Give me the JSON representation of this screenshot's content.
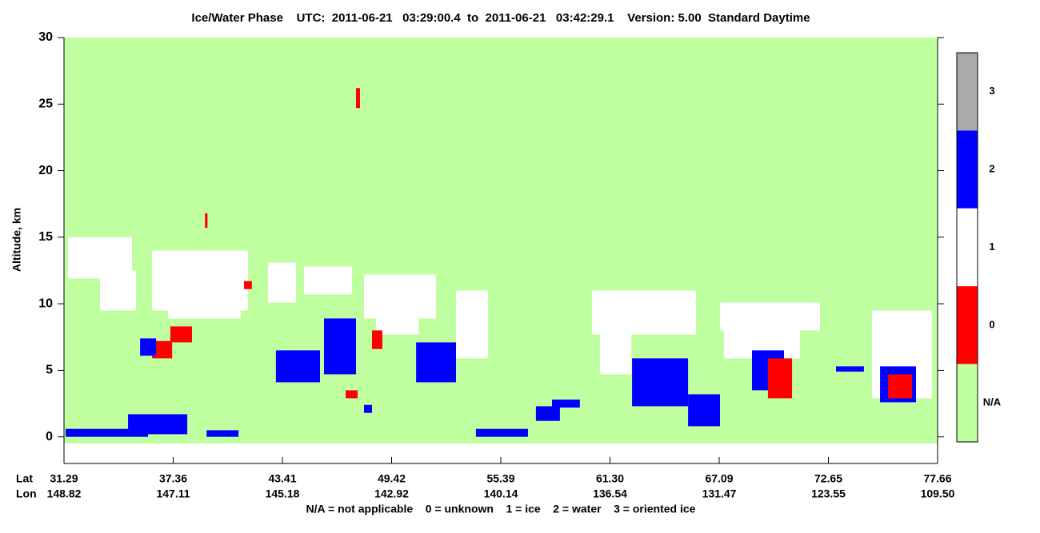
{
  "chart_data": {
    "type": "curtain",
    "title": "Ice/Water Phase    UTC:  2011-06-21   03:29:00.4  to  2011-06-21   03:42:29.1    Version: 5.00  Standard Daytime",
    "ylabel": "Altitude, km",
    "ylim": [
      -2,
      30
    ],
    "yticks": [
      0,
      5,
      10,
      15,
      20,
      25,
      30
    ],
    "lat_label": "Lat",
    "lon_label": "Lon",
    "xticks": [
      31.29,
      37.36,
      43.41,
      49.42,
      55.39,
      {
        "value": 61.3,
        "label": "61.30"
      },
      67.09,
      72.65,
      77.66
    ],
    "lon_ticks": [
      148.82,
      147.11,
      145.18,
      142.92,
      140.14,
      136.54,
      131.47,
      123.55,
      {
        "value": 109.5,
        "label": "109.50"
      }
    ],
    "colorbar": [
      {
        "label": "3",
        "color": "#aaaaaa"
      },
      {
        "label": "2",
        "color": "#0000ff"
      },
      {
        "label": "1",
        "color": "#ffffff"
      },
      {
        "label": "0",
        "color": "#ff0000"
      },
      {
        "label": "N/A",
        "color": "#c0ffa0"
      }
    ],
    "legend_text": "N/A = not applicable    0 = unknown    1 = ice    2 = water    3 = oriented ice",
    "regions": [
      {
        "lat": [
          31.29,
          77.66
        ],
        "alt": [
          -0.5,
          30
        ],
        "phase": "N/A"
      },
      {
        "lat": [
          31.51,
          35.07
        ],
        "alt": [
          11.9,
          15.0
        ],
        "phase": "1"
      },
      {
        "lat": [
          33.29,
          35.29
        ],
        "alt": [
          9.5,
          12.5
        ],
        "phase": "1"
      },
      {
        "lat": [
          36.19,
          41.5
        ],
        "alt": [
          9.5,
          14.0
        ],
        "phase": "1"
      },
      {
        "lat": [
          37.07,
          41.1
        ],
        "alt": [
          8.9,
          10.1
        ],
        "phase": "1"
      },
      {
        "lat": [
          42.61,
          44.16
        ],
        "alt": [
          10.1,
          13.1
        ],
        "phase": "1"
      },
      {
        "lat": [
          44.6,
          47.24
        ],
        "alt": [
          10.7,
          12.8
        ],
        "phase": "1"
      },
      {
        "lat": [
          47.9,
          51.85
        ],
        "alt": [
          8.9,
          12.2
        ],
        "phase": "1"
      },
      {
        "lat": [
          48.56,
          50.9
        ],
        "alt": [
          7.7,
          9.5
        ],
        "phase": "1"
      },
      {
        "lat": [
          52.94,
          54.69
        ],
        "alt": [
          5.9,
          11.0
        ],
        "phase": "1"
      },
      {
        "lat": [
          60.33,
          65.86
        ],
        "alt": [
          7.7,
          11.0
        ],
        "phase": "1"
      },
      {
        "lat": [
          60.76,
          62.43
        ],
        "alt": [
          4.7,
          8.9
        ],
        "phase": "1"
      },
      {
        "lat": [
          67.13,
          72.22
        ],
        "alt": [
          8.0,
          10.1
        ],
        "phase": "1"
      },
      {
        "lat": [
          67.33,
          71.2
        ],
        "alt": [
          5.9,
          8.3
        ],
        "phase": "1"
      },
      {
        "lat": [
          74.65,
          77.4
        ],
        "alt": [
          2.9,
          9.5
        ],
        "phase": "1"
      },
      {
        "lat": [
          47.46,
          47.68
        ],
        "alt": [
          24.7,
          26.2
        ],
        "phase": "0"
      },
      {
        "lat": [
          39.12,
          39.26
        ],
        "alt": [
          15.7,
          16.8
        ],
        "phase": "0"
      },
      {
        "lat": [
          36.19,
          37.3
        ],
        "alt": [
          5.9,
          7.2
        ],
        "phase": "0"
      },
      {
        "lat": [
          37.2,
          38.4
        ],
        "alt": [
          7.1,
          8.3
        ],
        "phase": "0"
      },
      {
        "lat": [
          46.89,
          47.55
        ],
        "alt": [
          2.9,
          3.5
        ],
        "phase": "0"
      },
      {
        "lat": [
          48.34,
          48.91
        ],
        "alt": [
          6.6,
          8.0
        ],
        "phase": "0"
      },
      {
        "lat": [
          41.28,
          41.72
        ],
        "alt": [
          11.1,
          11.7
        ],
        "phase": "0"
      },
      {
        "lat": [
          31.38,
          35.96
        ],
        "alt": [
          0,
          0.6
        ],
        "phase": "2"
      },
      {
        "lat": [
          34.85,
          38.14
        ],
        "alt": [
          0.2,
          1.7
        ],
        "phase": "2"
      },
      {
        "lat": [
          39.21,
          40.98
        ],
        "alt": [
          0,
          0.5
        ],
        "phase": "2"
      },
      {
        "lat": [
          54.03,
          56.86
        ],
        "alt": [
          0,
          0.6
        ],
        "phase": "2"
      },
      {
        "lat": [
          57.29,
          58.59
        ],
        "alt": [
          1.2,
          2.3
        ],
        "phase": "2"
      },
      {
        "lat": [
          58.16,
          59.67
        ],
        "alt": [
          2.2,
          2.8
        ],
        "phase": "2"
      },
      {
        "lat": [
          35.52,
          36.41
        ],
        "alt": [
          6.1,
          7.4
        ],
        "phase": "2"
      },
      {
        "lat": [
          43.05,
          45.48
        ],
        "alt": [
          4.1,
          6.5
        ],
        "phase": "2"
      },
      {
        "lat": [
          45.7,
          47.46
        ],
        "alt": [
          4.7,
          8.9
        ],
        "phase": "2"
      },
      {
        "lat": [
          47.9,
          48.34
        ],
        "alt": [
          1.8,
          2.4
        ],
        "phase": "2"
      },
      {
        "lat": [
          50.76,
          52.94
        ],
        "alt": [
          4.1,
          7.1
        ],
        "phase": "2"
      },
      {
        "lat": [
          62.47,
          65.44
        ],
        "alt": [
          2.3,
          5.9
        ],
        "phase": "2"
      },
      {
        "lat": [
          65.44,
          67.13
        ],
        "alt": [
          0.8,
          3.2
        ],
        "phase": "2"
      },
      {
        "lat": [
          68.76,
          70.39
        ],
        "alt": [
          3.5,
          6.5
        ],
        "phase": "2"
      },
      {
        "lat": [
          75.02,
          76.67
        ],
        "alt": [
          2.6,
          5.3
        ],
        "phase": "2"
      },
      {
        "lat": [
          73.0,
          74.28
        ],
        "alt": [
          4.9,
          5.3
        ],
        "phase": "2"
      },
      {
        "lat": [
          75.39,
          76.49
        ],
        "alt": [
          2.9,
          4.7
        ],
        "phase": "0"
      },
      {
        "lat": [
          69.57,
          70.8
        ],
        "alt": [
          2.9,
          5.9
        ],
        "phase": "0"
      }
    ]
  }
}
